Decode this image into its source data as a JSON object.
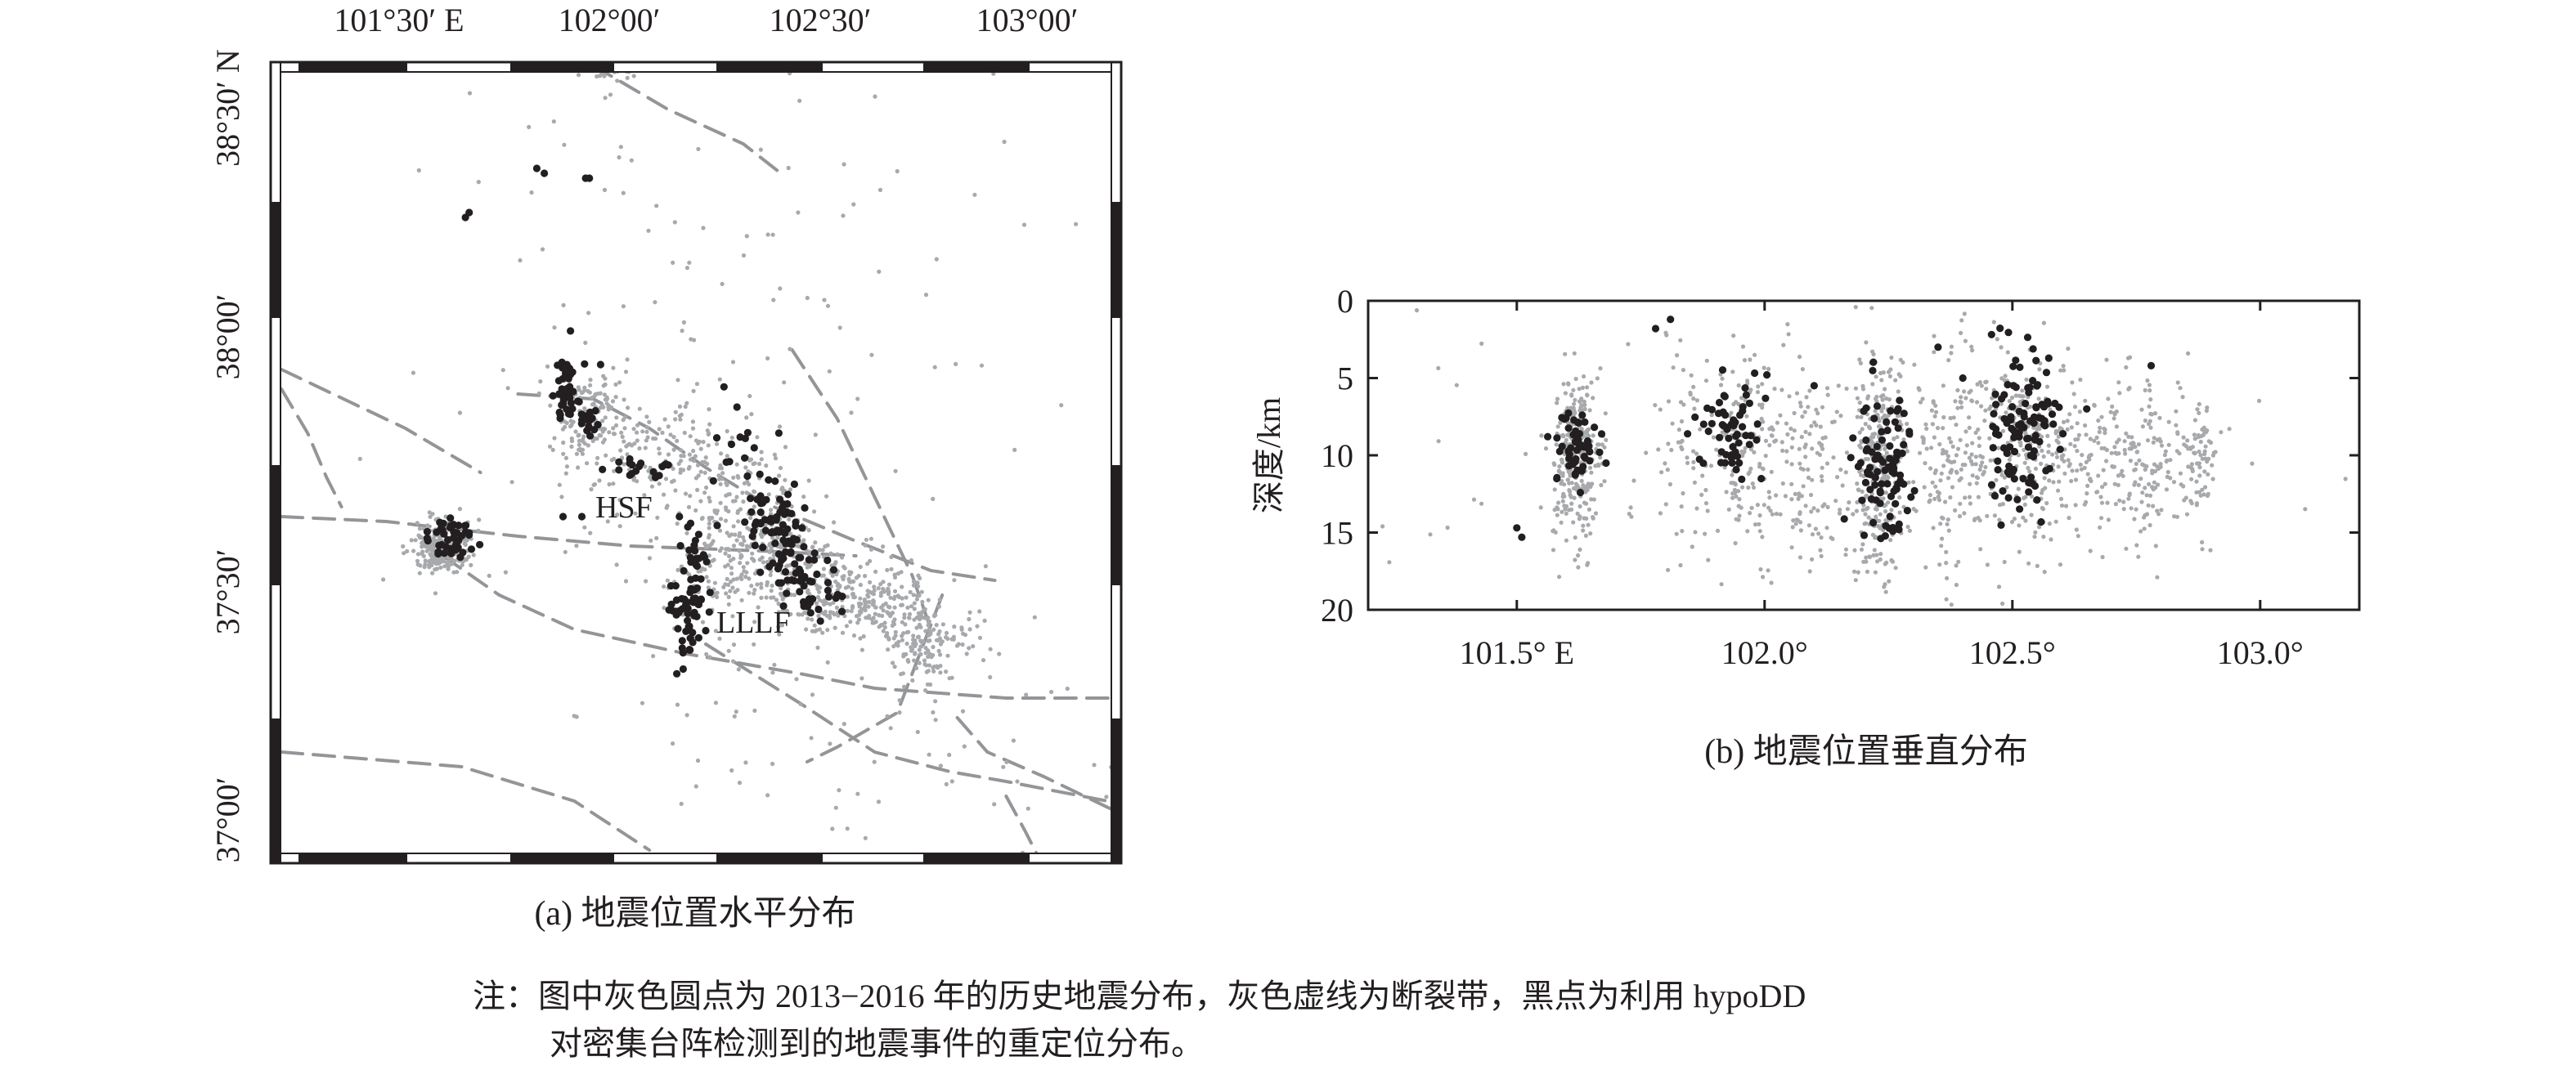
{
  "chart_data": [
    {
      "type": "scatter",
      "caption": "(a) 地震位置水平分布",
      "x_ticks": [
        "101°30′ E",
        "102°00′",
        "102°30′",
        "103°00′"
      ],
      "y_ticks": [
        "38°30′ N",
        "38°00′",
        "37°30′",
        "37°00′"
      ],
      "xlim": [
        101.0,
        103.25
      ],
      "ylim": [
        36.98,
        38.6
      ],
      "fault_labels": [
        {
          "text": "HSF",
          "x": 101.9,
          "y": 37.64
        },
        {
          "text": "LLLF",
          "x": 102.13,
          "y": 37.4
        }
      ],
      "faults": [
        [
          [
            101.85,
            38.6
          ],
          [
            102.05,
            38.51
          ],
          [
            102.25,
            38.44
          ],
          [
            102.35,
            38.38
          ]
        ],
        [
          [
            101.02,
            37.98
          ],
          [
            101.35,
            37.86
          ],
          [
            101.55,
            37.77
          ]
        ],
        [
          [
            101.02,
            37.94
          ],
          [
            101.09,
            37.85
          ],
          [
            101.14,
            37.76
          ],
          [
            101.18,
            37.7
          ]
        ],
        [
          [
            101.02,
            37.68
          ],
          [
            101.3,
            37.67
          ],
          [
            101.65,
            37.64
          ],
          [
            101.95,
            37.62
          ],
          [
            102.3,
            37.61
          ],
          [
            102.55,
            37.6
          ]
        ],
        [
          [
            101.45,
            37.6
          ],
          [
            101.6,
            37.52
          ],
          [
            101.8,
            37.45
          ],
          [
            102.1,
            37.4
          ],
          [
            102.4,
            37.36
          ],
          [
            102.6,
            37.33
          ],
          [
            102.95,
            37.31
          ],
          [
            103.24,
            37.31
          ]
        ],
        [
          [
            101.02,
            37.2
          ],
          [
            101.5,
            37.17
          ],
          [
            101.8,
            37.1
          ],
          [
            102.0,
            37.0
          ]
        ],
        [
          [
            101.65,
            37.93
          ],
          [
            101.85,
            37.92
          ],
          [
            102.0,
            37.86
          ],
          [
            102.15,
            37.78
          ],
          [
            102.3,
            37.71
          ],
          [
            102.55,
            37.63
          ],
          [
            102.75,
            37.57
          ],
          [
            102.92,
            37.55
          ]
        ],
        [
          [
            102.38,
            38.02
          ],
          [
            102.5,
            37.88
          ],
          [
            102.6,
            37.72
          ],
          [
            102.7,
            37.56
          ],
          [
            102.75,
            37.45
          ]
        ],
        [
          [
            102.78,
            37.52
          ],
          [
            102.72,
            37.4
          ],
          [
            102.66,
            37.28
          ],
          [
            102.5,
            37.21
          ],
          [
            102.42,
            37.18
          ]
        ],
        [
          [
            102.15,
            37.42
          ],
          [
            102.4,
            37.3
          ],
          [
            102.6,
            37.2
          ],
          [
            102.8,
            37.16
          ],
          [
            102.95,
            37.14
          ],
          [
            103.22,
            37.1
          ]
        ],
        [
          [
            102.82,
            37.27
          ],
          [
            102.9,
            37.2
          ],
          [
            103.05,
            37.15
          ],
          [
            103.24,
            37.08
          ]
        ],
        [
          [
            102.95,
            37.11
          ],
          [
            103.0,
            37.04
          ],
          [
            103.04,
            36.98
          ]
        ]
      ],
      "series": [
        {
          "name": "",
          "color": "#a7a9ac",
          "clusters": [
            {
              "x": 101.45,
              "y": 37.62,
              "sx": 0.04,
              "sy": 0.03,
              "n": 260
            },
            {
              "x": 101.84,
              "y": 37.88,
              "sx": 0.05,
              "sy": 0.05,
              "n": 150
            },
            {
              "x": 102.05,
              "y": 37.8,
              "sx": 0.12,
              "sy": 0.06,
              "n": 160
            },
            {
              "x": 102.3,
              "y": 37.66,
              "sx": 0.08,
              "sy": 0.07,
              "n": 230
            },
            {
              "x": 102.45,
              "y": 37.54,
              "sx": 0.1,
              "sy": 0.05,
              "n": 190
            },
            {
              "x": 102.62,
              "y": 37.5,
              "sx": 0.09,
              "sy": 0.04,
              "n": 170
            },
            {
              "x": 102.75,
              "y": 37.42,
              "sx": 0.07,
              "sy": 0.04,
              "n": 140
            },
            {
              "x": 102.15,
              "y": 37.55,
              "sx": 0.06,
              "sy": 0.07,
              "n": 90
            },
            {
              "x": 101.9,
              "y": 38.59,
              "sx": 0.03,
              "sy": 0.01,
              "n": 30
            },
            {
              "x": 102.2,
              "y": 38.1,
              "sx": 0.45,
              "sy": 0.35,
              "n": 140
            },
            {
              "x": 102.6,
              "y": 37.2,
              "sx": 0.45,
              "sy": 0.15,
              "n": 90
            }
          ]
        },
        {
          "name": "",
          "color": "#231f20",
          "clusters": [
            {
              "x": 101.47,
              "y": 37.63,
              "sx": 0.03,
              "sy": 0.02,
              "n": 45
            },
            {
              "x": 101.78,
              "y": 37.94,
              "sx": 0.015,
              "sy": 0.04,
              "n": 40
            },
            {
              "x": 101.84,
              "y": 37.88,
              "sx": 0.015,
              "sy": 0.02,
              "n": 20
            },
            {
              "x": 101.98,
              "y": 37.78,
              "sx": 0.05,
              "sy": 0.01,
              "n": 18
            },
            {
              "x": 102.1,
              "y": 37.47,
              "sx": 0.025,
              "sy": 0.05,
              "n": 55
            },
            {
              "x": 102.12,
              "y": 37.6,
              "sx": 0.02,
              "sy": 0.03,
              "n": 18
            },
            {
              "x": 102.25,
              "y": 37.79,
              "sx": 0.04,
              "sy": 0.06,
              "n": 20
            },
            {
              "x": 102.33,
              "y": 37.67,
              "sx": 0.04,
              "sy": 0.03,
              "n": 55
            },
            {
              "x": 102.38,
              "y": 37.58,
              "sx": 0.04,
              "sy": 0.03,
              "n": 40
            },
            {
              "x": 102.45,
              "y": 37.51,
              "sx": 0.05,
              "sy": 0.02,
              "n": 22
            }
          ],
          "points": [
            [
              101.51,
              38.29
            ],
            [
              101.52,
              38.3
            ],
            [
              101.7,
              38.39
            ],
            [
              101.72,
              38.38
            ],
            [
              101.83,
              38.37
            ],
            [
              101.84,
              38.37
            ],
            [
              101.82,
              37.68
            ],
            [
              101.77,
              37.68
            ],
            [
              101.87,
              37.99
            ],
            [
              102.08,
              37.68
            ],
            [
              102.35,
              37.6
            ]
          ]
        }
      ]
    },
    {
      "type": "scatter",
      "caption": "(b) 地震位置垂直分布",
      "ylabel": "深度/km",
      "x_ticks": [
        "101.5° E",
        "102.0°",
        "102.5°",
        "103.0°"
      ],
      "x_tick_values": [
        101.5,
        102.0,
        102.5,
        103.0
      ],
      "y_ticks": [
        "0",
        "5",
        "10",
        "15",
        "20"
      ],
      "y_tick_values": [
        0,
        5,
        10,
        15,
        20
      ],
      "xlim": [
        101.2,
        103.2
      ],
      "ylim": [
        0,
        20
      ],
      "y_inverted": true,
      "series": [
        {
          "name": "",
          "color": "#a7a9ac",
          "clusters": [
            {
              "x": 101.62,
              "y": 10,
              "sx": 0.025,
              "sy": 2.8,
              "n": 300
            },
            {
              "x": 101.84,
              "y": 10,
              "sx": 0.04,
              "sy": 4.5,
              "n": 60
            },
            {
              "x": 101.96,
              "y": 9.5,
              "sx": 0.04,
              "sy": 3,
              "n": 130
            },
            {
              "x": 102.08,
              "y": 10,
              "sx": 0.04,
              "sy": 3.5,
              "n": 110
            },
            {
              "x": 102.23,
              "y": 11,
              "sx": 0.025,
              "sy": 3.5,
              "n": 300
            },
            {
              "x": 102.38,
              "y": 10,
              "sx": 0.05,
              "sy": 3.5,
              "n": 170
            },
            {
              "x": 102.55,
              "y": 10,
              "sx": 0.06,
              "sy": 3,
              "n": 260
            },
            {
              "x": 102.75,
              "y": 10,
              "sx": 0.07,
              "sy": 2.5,
              "n": 200
            },
            {
              "x": 102.88,
              "y": 10.5,
              "sx": 0.02,
              "sy": 1.5,
              "n": 60
            },
            {
              "x": 102.2,
              "y": 10,
              "sx": 0.6,
              "sy": 5,
              "n": 130
            }
          ]
        },
        {
          "name": "",
          "color": "#231f20",
          "clusters": [
            {
              "x": 101.62,
              "y": 9.5,
              "sx": 0.02,
              "sy": 1.3,
              "n": 55
            },
            {
              "x": 101.93,
              "y": 8.5,
              "sx": 0.03,
              "sy": 1.5,
              "n": 60
            },
            {
              "x": 102.24,
              "y": 10.5,
              "sx": 0.03,
              "sy": 2.5,
              "n": 90
            },
            {
              "x": 102.52,
              "y": 8.5,
              "sx": 0.035,
              "sy": 2.5,
              "n": 110
            }
          ],
          "points": [
            [
              101.78,
              1.8
            ],
            [
              101.81,
              1.2
            ],
            [
              101.5,
              14.7
            ],
            [
              101.51,
              15.3
            ],
            [
              101.68,
              10.5
            ],
            [
              102.1,
              5.5
            ],
            [
              102.35,
              3.0
            ],
            [
              102.4,
              5.0
            ],
            [
              102.65,
              7.0
            ],
            [
              102.78,
              4.2
            ]
          ]
        }
      ]
    }
  ],
  "note": {
    "line1": "注：图中灰色圆点为 2013−2016 年的历史地震分布，灰色虚线为断裂带，黑点为利用 hypoDD",
    "line2": "对密集台阵检测到的地震事件的重定位分布。"
  }
}
